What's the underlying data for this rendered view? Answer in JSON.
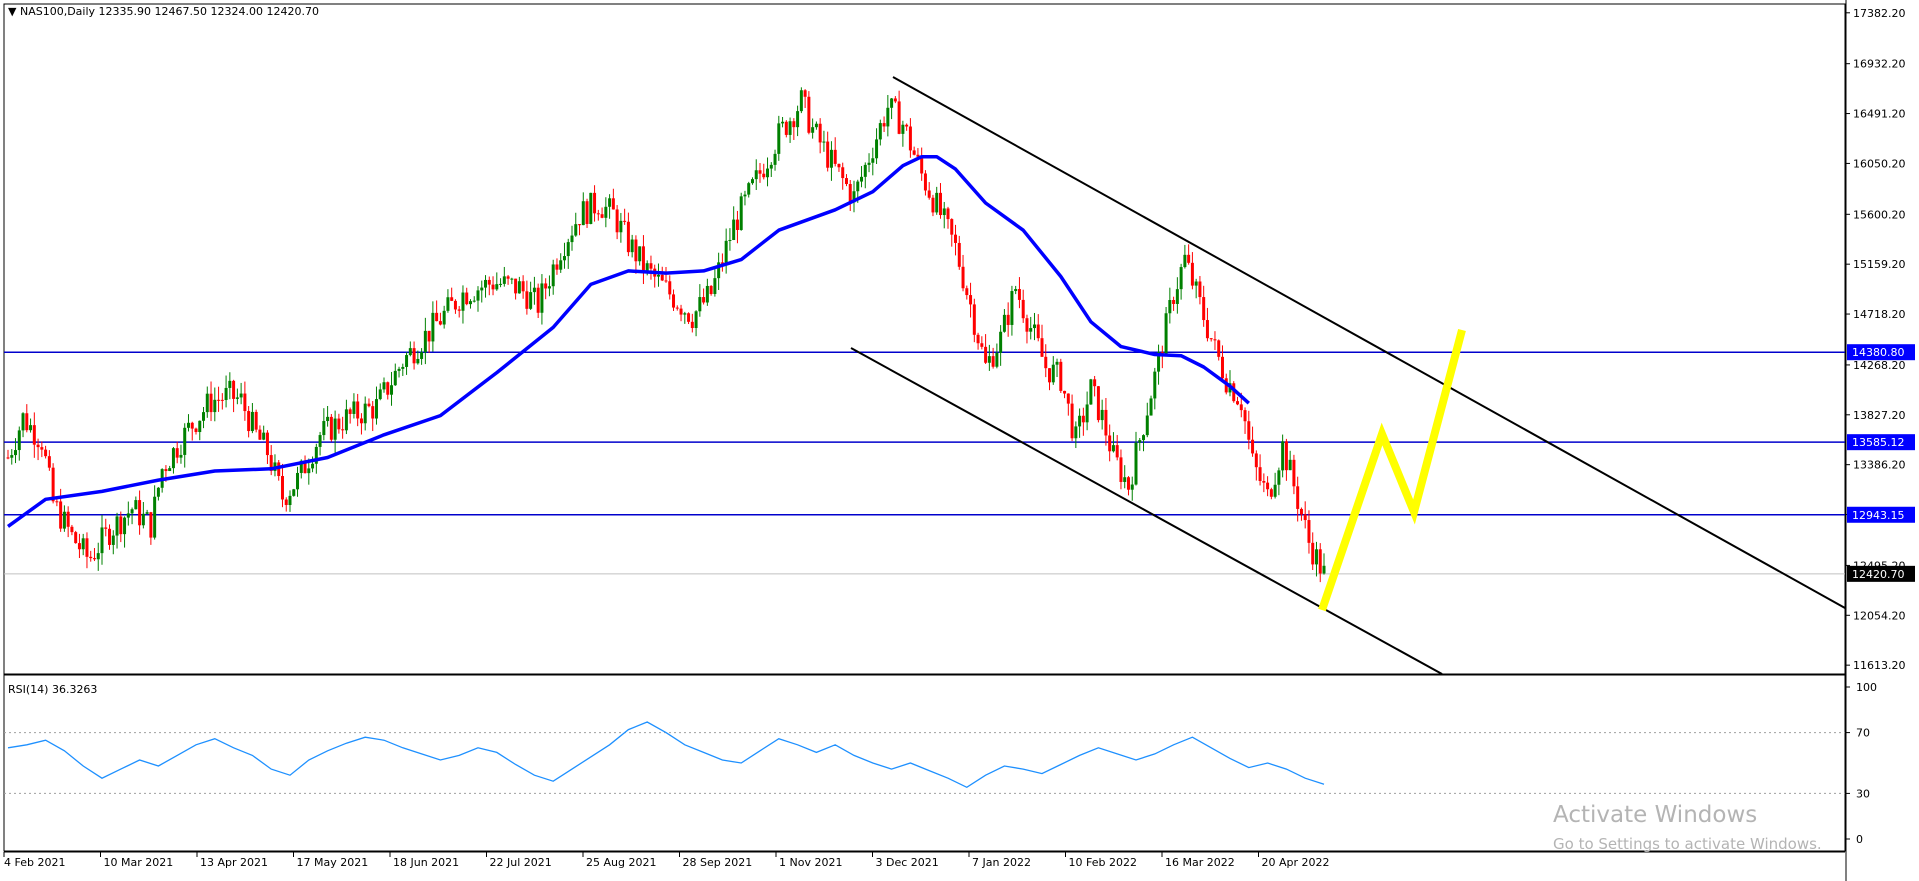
{
  "header": {
    "symbol": "NAS100,Daily",
    "open": "12335.90",
    "high": "12467.50",
    "low": "12324.00",
    "close": "12420.70"
  },
  "rsi_panel": {
    "label": "RSI(14) 36.3263"
  },
  "watermark": {
    "line1": "Activate Windows",
    "line2": "Go to Settings to activate Windows."
  },
  "colors": {
    "bull": "#008000",
    "bear": "#ff0000",
    "ma": "#0000ff",
    "levels": "#0000cc",
    "trendlines": "#000000",
    "projection": "#ffff00",
    "rsi": "#1e90ff",
    "grid_dots": "#a0a0a0"
  },
  "chart_data": [
    {
      "type": "candlestick",
      "symbol": "NAS100",
      "timeframe": "Daily",
      "y_ticks": [
        "17382.20",
        "16932.20",
        "16491.20",
        "16050.20",
        "15600.20",
        "15159.20",
        "14718.20",
        "14268.20",
        "13827.20",
        "13386.20",
        "12945.20",
        "12495.20",
        "12054.20",
        "11613.20"
      ],
      "x_ticks": [
        "4 Feb 2021",
        "10 Mar 2021",
        "13 Apr 2021",
        "17 May 2021",
        "18 Jun 2021",
        "22 Jul 2021",
        "25 Aug 2021",
        "28 Sep 2021",
        "1 Nov 2021",
        "3 Dec 2021",
        "7 Jan 2022",
        "10 Feb 2022",
        "16 Mar 2022",
        "20 Apr 2022"
      ],
      "ylim": [
        11535,
        17460
      ],
      "horizontal_levels": [
        {
          "value": 14380.8,
          "label": "14380.80"
        },
        {
          "value": 13585.12,
          "label": "13585.12"
        },
        {
          "value": 12943.15,
          "label": "12943.15"
        }
      ],
      "current_price": {
        "value": 12420.7,
        "label": "12420.70"
      },
      "close_path_anchors": [
        [
          0,
          13450
        ],
        [
          8,
          13800
        ],
        [
          18,
          13600
        ],
        [
          24,
          13050
        ],
        [
          34,
          12750
        ],
        [
          43,
          12550
        ],
        [
          54,
          12800
        ],
        [
          66,
          13000
        ],
        [
          76,
          12850
        ],
        [
          82,
          13350
        ],
        [
          96,
          13700
        ],
        [
          108,
          13950
        ],
        [
          118,
          14000
        ],
        [
          124,
          13950
        ],
        [
          132,
          13650
        ],
        [
          138,
          13500
        ],
        [
          146,
          13100
        ],
        [
          154,
          13250
        ],
        [
          166,
          13650
        ],
        [
          180,
          13800
        ],
        [
          196,
          13900
        ],
        [
          210,
          14300
        ],
        [
          226,
          14600
        ],
        [
          242,
          14900
        ],
        [
          258,
          15000
        ],
        [
          272,
          14950
        ],
        [
          282,
          14800
        ],
        [
          294,
          15300
        ],
        [
          304,
          15600
        ],
        [
          314,
          15700
        ],
        [
          322,
          15600
        ],
        [
          330,
          15350
        ],
        [
          340,
          15100
        ],
        [
          352,
          14900
        ],
        [
          364,
          14700
        ],
        [
          374,
          14900
        ],
        [
          386,
          15500
        ],
        [
          398,
          15900
        ],
        [
          410,
          16300
        ],
        [
          422,
          16600
        ],
        [
          428,
          16350
        ],
        [
          440,
          16000
        ],
        [
          450,
          15750
        ],
        [
          460,
          16200
        ],
        [
          468,
          16550
        ],
        [
          476,
          16400
        ],
        [
          486,
          15950
        ],
        [
          496,
          15600
        ],
        [
          504,
          15300
        ],
        [
          512,
          14800
        ],
        [
          520,
          14250
        ],
        [
          528,
          14500
        ],
        [
          536,
          14950
        ],
        [
          544,
          14600
        ],
        [
          552,
          14250
        ],
        [
          560,
          14150
        ],
        [
          568,
          13600
        ],
        [
          576,
          14050
        ],
        [
          582,
          13800
        ],
        [
          588,
          13450
        ],
        [
          596,
          13200
        ],
        [
          604,
          13750
        ],
        [
          612,
          14300
        ],
        [
          620,
          14900
        ],
        [
          626,
          15200
        ],
        [
          634,
          14800
        ],
        [
          642,
          14400
        ],
        [
          648,
          14150
        ],
        [
          656,
          13950
        ],
        [
          662,
          13400
        ],
        [
          670,
          13100
        ],
        [
          678,
          13550
        ],
        [
          684,
          13200
        ],
        [
          692,
          12700
        ],
        [
          700,
          12420
        ]
      ],
      "series": [
        {
          "name": "Moving Average",
          "points": [
            [
              0,
              12840
            ],
            [
              20,
              13080
            ],
            [
              50,
              13150
            ],
            [
              80,
              13250
            ],
            [
              110,
              13330
            ],
            [
              140,
              13350
            ],
            [
              170,
              13450
            ],
            [
              200,
              13650
            ],
            [
              230,
              13820
            ],
            [
              260,
              14200
            ],
            [
              290,
              14600
            ],
            [
              310,
              14980
            ],
            [
              330,
              15100
            ],
            [
              350,
              15080
            ],
            [
              370,
              15100
            ],
            [
              390,
              15200
            ],
            [
              410,
              15460
            ],
            [
              440,
              15640
            ],
            [
              460,
              15800
            ],
            [
              476,
              16030
            ],
            [
              486,
              16110
            ],
            [
              494,
              16110
            ],
            [
              504,
              16000
            ],
            [
              520,
              15700
            ],
            [
              540,
              15460
            ],
            [
              560,
              15050
            ],
            [
              576,
              14650
            ],
            [
              592,
              14430
            ],
            [
              610,
              14360
            ],
            [
              624,
              14350
            ],
            [
              636,
              14250
            ],
            [
              650,
              14080
            ],
            [
              660,
              13930
            ]
          ]
        },
        {
          "name": "RSI(14)",
          "ylim": [
            0,
            100
          ],
          "levels": [
            70,
            30
          ],
          "y_ticks": [
            "100",
            "70",
            "30",
            "0"
          ],
          "points": [
            [
              0,
              60
            ],
            [
              10,
              62
            ],
            [
              20,
              65
            ],
            [
              30,
              58
            ],
            [
              40,
              48
            ],
            [
              50,
              40
            ],
            [
              60,
              46
            ],
            [
              70,
              52
            ],
            [
              80,
              48
            ],
            [
              90,
              55
            ],
            [
              100,
              62
            ],
            [
              110,
              66
            ],
            [
              120,
              60
            ],
            [
              130,
              55
            ],
            [
              140,
              46
            ],
            [
              150,
              42
            ],
            [
              160,
              52
            ],
            [
              170,
              58
            ],
            [
              180,
              63
            ],
            [
              190,
              67
            ],
            [
              200,
              65
            ],
            [
              210,
              60
            ],
            [
              220,
              56
            ],
            [
              230,
              52
            ],
            [
              240,
              55
            ],
            [
              250,
              60
            ],
            [
              260,
              57
            ],
            [
              270,
              49
            ],
            [
              280,
              42
            ],
            [
              290,
              38
            ],
            [
              300,
              46
            ],
            [
              310,
              54
            ],
            [
              320,
              62
            ],
            [
              330,
              72
            ],
            [
              340,
              77
            ],
            [
              350,
              70
            ],
            [
              360,
              62
            ],
            [
              370,
              57
            ],
            [
              380,
              52
            ],
            [
              390,
              50
            ],
            [
              400,
              58
            ],
            [
              410,
              66
            ],
            [
              420,
              62
            ],
            [
              430,
              57
            ],
            [
              440,
              62
            ],
            [
              450,
              55
            ],
            [
              460,
              50
            ],
            [
              470,
              46
            ],
            [
              480,
              50
            ],
            [
              490,
              45
            ],
            [
              500,
              40
            ],
            [
              510,
              34
            ],
            [
              520,
              42
            ],
            [
              530,
              48
            ],
            [
              540,
              46
            ],
            [
              550,
              43
            ],
            [
              560,
              49
            ],
            [
              570,
              55
            ],
            [
              580,
              60
            ],
            [
              590,
              56
            ],
            [
              600,
              52
            ],
            [
              610,
              56
            ],
            [
              620,
              62
            ],
            [
              630,
              67
            ],
            [
              640,
              60
            ],
            [
              650,
              53
            ],
            [
              660,
              47
            ],
            [
              670,
              50
            ],
            [
              680,
              46
            ],
            [
              690,
              40
            ],
            [
              700,
              36
            ]
          ]
        }
      ]
    }
  ]
}
